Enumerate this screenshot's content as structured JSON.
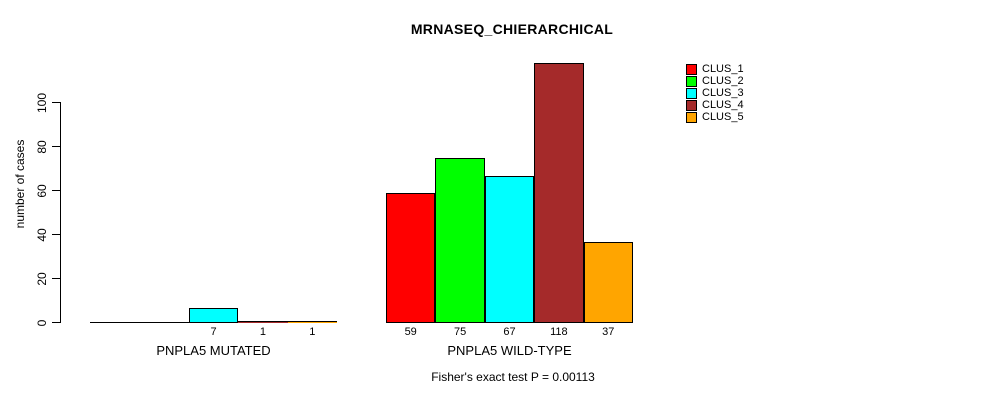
{
  "chart_data": {
    "type": "bar",
    "title": "MRNASEQ_CHIERARCHICAL",
    "ylabel": "number of cases",
    "xlabel": "",
    "yticks": [
      0,
      20,
      40,
      60,
      80,
      100
    ],
    "ylim": [
      0,
      120
    ],
    "grid": false,
    "legend_position": "top-right",
    "background": "#ffffff",
    "bar_border_color": "#000000",
    "categories": [
      "PNPLA5 MUTATED",
      "PNPLA5 WILD-TYPE"
    ],
    "series": [
      {
        "name": "CLUS_1",
        "color": "#ff0000",
        "values": [
          0,
          59
        ]
      },
      {
        "name": "CLUS_2",
        "color": "#00ff00",
        "values": [
          0,
          75
        ]
      },
      {
        "name": "CLUS_3",
        "color": "#00ffff",
        "values": [
          7,
          67
        ]
      },
      {
        "name": "CLUS_4",
        "color": "#a52a2a",
        "values": [
          1,
          118
        ]
      },
      {
        "name": "CLUS_5",
        "color": "#ffa500",
        "values": [
          1,
          37
        ]
      }
    ],
    "bar_value_labels_shown": [
      "7",
      "1",
      "1",
      "59",
      "75",
      "67",
      "118",
      "37"
    ],
    "footnote": "Fisher's exact test P = 0.00113"
  }
}
